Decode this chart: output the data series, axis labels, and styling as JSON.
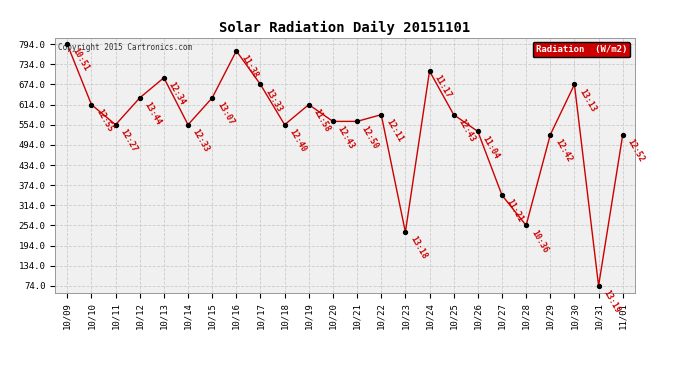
{
  "title": "Solar Radiation Daily 20151101",
  "copyright": "Copyright 2015 Cartronics.com",
  "background_color": "#ffffff",
  "plot_bg_color": "#f0f0f0",
  "grid_color": "#cccccc",
  "line_color": "#cc0000",
  "marker_color": "#000000",
  "label_color": "#cc0000",
  "ylim_min": 54.0,
  "ylim_max": 814.0,
  "yticks": [
    74.0,
    134.0,
    194.0,
    254.0,
    314.0,
    374.0,
    434.0,
    494.0,
    554.0,
    614.0,
    674.0,
    734.0,
    794.0
  ],
  "dates": [
    "10/09",
    "10/10",
    "10/11",
    "10/12",
    "10/13",
    "10/14",
    "10/15",
    "10/16",
    "10/17",
    "10/18",
    "10/19",
    "10/20",
    "10/21",
    "10/22",
    "10/23",
    "10/24",
    "10/25",
    "10/26",
    "10/27",
    "10/28",
    "10/29",
    "10/30",
    "10/31",
    "11/01"
  ],
  "values": [
    794.0,
    614.0,
    554.0,
    634.0,
    694.0,
    554.0,
    634.0,
    774.0,
    674.0,
    554.0,
    614.0,
    564.0,
    564.0,
    584.0,
    234.0,
    714.0,
    584.0,
    534.0,
    344.0,
    254.0,
    524.0,
    674.0,
    74.0,
    524.0
  ],
  "time_labels": [
    "10:51",
    "12:55",
    "12:27",
    "13:44",
    "12:34",
    "12:33",
    "13:07",
    "11:38",
    "13:33",
    "12:40",
    "11:58",
    "12:43",
    "12:50",
    "12:11",
    "13:18",
    "11:17",
    "12:43",
    "11:04",
    "11:21",
    "10:36",
    "12:42",
    "13:13",
    "13:19",
    "12:52"
  ],
  "legend_text": "Radiation  (W/m2)",
  "legend_bg": "#cc0000",
  "legend_fg": "#ffffff",
  "figwidth": 6.9,
  "figheight": 3.75,
  "dpi": 100
}
